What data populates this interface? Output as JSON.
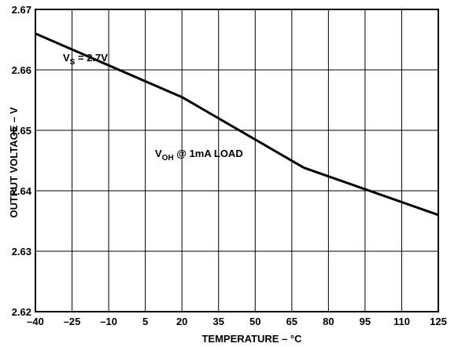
{
  "chart_data": {
    "type": "line",
    "xlabel": "TEMPERATURE – °C",
    "ylabel": "OUTPUT VOLTAGE – V",
    "xlim": [
      -40,
      125
    ],
    "ylim": [
      2.62,
      2.67
    ],
    "x_ticks": [
      -40,
      -25,
      -10,
      5,
      20,
      35,
      50,
      65,
      80,
      95,
      110,
      125
    ],
    "x_tick_labels": [
      "–40",
      "–25",
      "–10",
      "5",
      "20",
      "35",
      "50",
      "65",
      "80",
      "95",
      "110",
      "125"
    ],
    "y_ticks": [
      2.62,
      2.63,
      2.64,
      2.65,
      2.66,
      2.67
    ],
    "y_tick_labels": [
      "2.62",
      "2.63",
      "2.64",
      "2.65",
      "2.66",
      "2.67"
    ],
    "grid": true,
    "series": [
      {
        "x": [
          -40,
          20,
          70,
          125
        ],
        "y": [
          2.666,
          2.6555,
          2.6438,
          2.636
        ]
      }
    ],
    "annotations": {
      "vs": {
        "main": "V",
        "sub": "S",
        "rest": " = 2.7V"
      },
      "voh": {
        "main": "V",
        "sub": "OH",
        "rest": " @ 1mA LOAD"
      }
    }
  }
}
